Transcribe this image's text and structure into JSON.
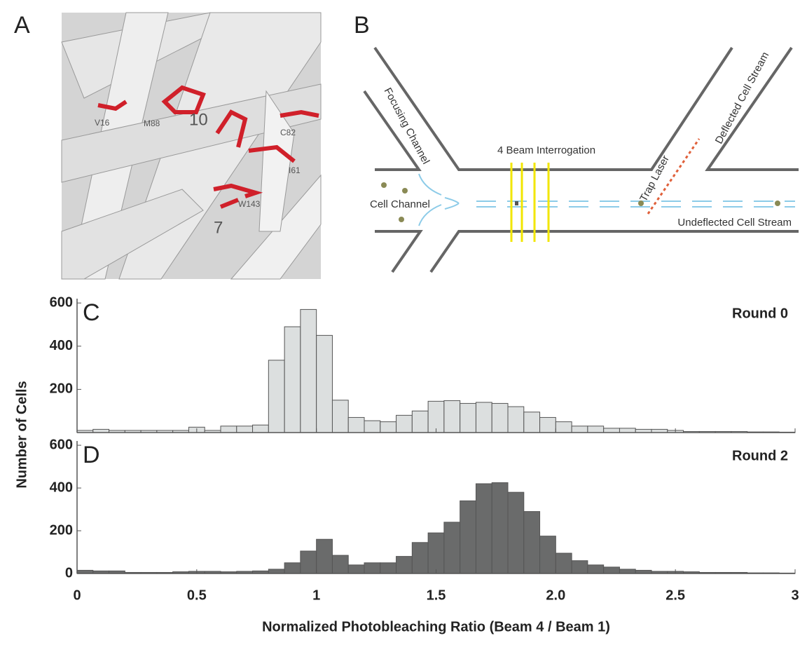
{
  "panel_a": {
    "letter": "A",
    "labels": [
      "V16",
      "M88",
      "10",
      "C82",
      "I61",
      "W143",
      "7"
    ]
  },
  "panel_b": {
    "letter": "B",
    "labels": [
      "Focusing Channel",
      "4 Beam Interrogation",
      "Cell Channel",
      "Trap Laser",
      "Deflected Cell Stream",
      "Undeflected Cell Stream"
    ]
  },
  "chart_data": [
    {
      "type": "histogram",
      "letter": "C",
      "title": "Round 0",
      "ylabel": "Number of Cells",
      "color": "#dcdfdf",
      "bins": [
        0,
        0.0667,
        0.1333,
        0.2,
        0.2667,
        0.3333,
        0.4,
        0.4667,
        0.5333,
        0.6,
        0.6667,
        0.7333,
        0.8,
        0.8667,
        0.9333,
        1,
        1.0667,
        1.1333,
        1.2,
        1.2667,
        1.3333,
        1.4,
        1.4667,
        1.5333,
        1.6,
        1.6667,
        1.7333,
        1.8,
        1.8667,
        1.9333,
        2,
        2.0667,
        2.1333,
        2.2,
        2.2667,
        2.3333,
        2.4,
        2.4667,
        2.5333,
        2.6,
        2.6667,
        2.7333,
        2.8,
        2.8667,
        2.9333,
        3
      ],
      "values": [
        10,
        15,
        10,
        10,
        10,
        10,
        10,
        25,
        10,
        30,
        30,
        35,
        335,
        490,
        570,
        450,
        150,
        70,
        55,
        50,
        80,
        100,
        145,
        148,
        135,
        140,
        135,
        120,
        95,
        70,
        50,
        30,
        30,
        20,
        20,
        15,
        15,
        10,
        5,
        5,
        5,
        5,
        3,
        3,
        2
      ],
      "xlim": [
        0,
        3
      ],
      "xticks": [
        0,
        0.5,
        1,
        1.5,
        2,
        2.5,
        3
      ],
      "ylim": [
        0,
        620
      ],
      "yticks": [
        200,
        400,
        600
      ]
    },
    {
      "type": "histogram",
      "letter": "D",
      "title": "Round 2",
      "xlabel": "Normalized Photobleaching Ratio (Beam 4 / Beam 1)",
      "color": "#6a6b6b",
      "bins": [
        0,
        0.0667,
        0.1333,
        0.2,
        0.2667,
        0.3333,
        0.4,
        0.4667,
        0.5333,
        0.6,
        0.6667,
        0.7333,
        0.8,
        0.8667,
        0.9333,
        1,
        1.0667,
        1.1333,
        1.2,
        1.2667,
        1.3333,
        1.4,
        1.4667,
        1.5333,
        1.6,
        1.6667,
        1.7333,
        1.8,
        1.8667,
        1.9333,
        2,
        2.0667,
        2.1333,
        2.2,
        2.2667,
        2.3333,
        2.4,
        2.4667,
        2.5333,
        2.6,
        2.6667,
        2.7333,
        2.8,
        2.8667,
        2.9333,
        3
      ],
      "values": [
        15,
        12,
        12,
        5,
        5,
        5,
        8,
        10,
        10,
        8,
        10,
        12,
        20,
        50,
        105,
        160,
        85,
        40,
        50,
        50,
        80,
        145,
        190,
        240,
        340,
        420,
        425,
        380,
        290,
        175,
        95,
        60,
        40,
        30,
        20,
        15,
        10,
        10,
        8,
        5,
        5,
        5,
        3,
        3,
        2
      ],
      "xlim": [
        0,
        3
      ],
      "xticks": [
        0,
        0.5,
        1,
        1.5,
        {
          "value": 2,
          "label": "2.0"
        },
        2.5,
        3
      ],
      "ylim": [
        0,
        620
      ],
      "yticks": [
        0,
        200,
        400,
        600
      ]
    }
  ]
}
